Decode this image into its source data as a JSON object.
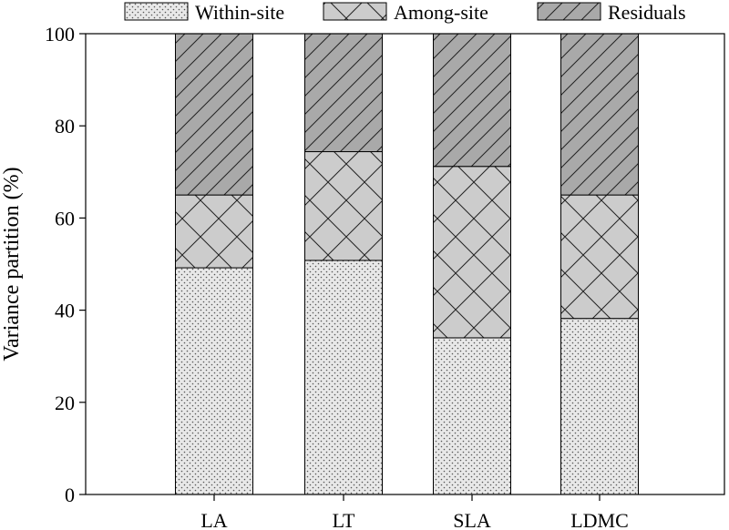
{
  "chart_data": {
    "type": "bar",
    "stacked": true,
    "percent_stacked": true,
    "title": "",
    "xlabel": "",
    "ylabel": "Variance partition (%)",
    "ylim": [
      0,
      100
    ],
    "yticks": [
      0,
      20,
      40,
      60,
      80,
      100
    ],
    "categories": [
      "LA",
      "LT",
      "SLA",
      "LDMC"
    ],
    "legend_position": "top",
    "grid": false,
    "series": [
      {
        "name": "Within-site",
        "values": [
          49.2,
          50.8,
          34.0,
          38.2
        ],
        "fill": "#e8e8e8",
        "pattern": "dots"
      },
      {
        "name": "Among-site",
        "values": [
          15.8,
          23.6,
          37.2,
          26.8
        ],
        "fill": "#cccccc",
        "pattern": "crosshatch"
      },
      {
        "name": "Residuals",
        "values": [
          35.0,
          25.6,
          28.8,
          35.0
        ],
        "fill": "#a9a9a9",
        "pattern": "diagonal"
      }
    ]
  }
}
